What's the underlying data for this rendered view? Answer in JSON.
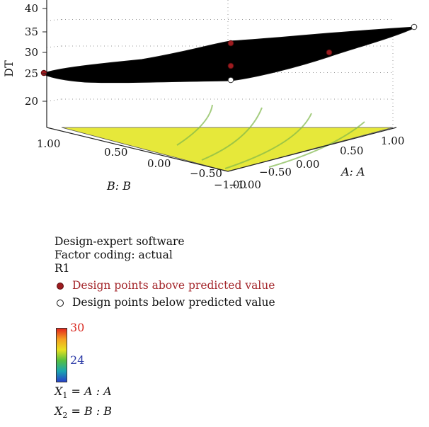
{
  "chart_data": {
    "type": "surface",
    "response_label": "DT",
    "z_ticks": [
      "20",
      "25",
      "30",
      "35",
      "40"
    ],
    "zlim": [
      20,
      40
    ],
    "a_axis_label": "A: A",
    "b_axis_label": "B: B",
    "a_ticks": [
      "−1.00",
      "−0.50",
      "0.00",
      "0.50",
      "1.00"
    ],
    "b_ticks": [
      "1.00",
      "0.50",
      "0.00",
      "−0.50",
      "−1.00"
    ],
    "a_range": [
      -1,
      1
    ],
    "b_range": [
      -1,
      1
    ],
    "surface_corners": [
      {
        "A": -1,
        "B": 1,
        "DT": 25.5
      },
      {
        "A": 1,
        "B": 1,
        "DT": 38
      },
      {
        "A": 1,
        "B": -1,
        "DT": 36
      },
      {
        "A": -1,
        "B": -1,
        "DT": 27
      }
    ],
    "design_points": [
      {
        "A": -1,
        "B": 1,
        "DT": 25.5,
        "status": "above"
      },
      {
        "A": 0,
        "B": 0,
        "DT": 32.5,
        "status": "above"
      },
      {
        "A": 0,
        "B": 0,
        "DT": 29.5,
        "status": "above"
      },
      {
        "A": 0.45,
        "B": -0.4,
        "DT": 31,
        "status": "above"
      },
      {
        "A": 0,
        "B": 0,
        "DT": 26.5,
        "status": "below"
      },
      {
        "A": 1,
        "B": 1,
        "DT": 38,
        "status": "below"
      }
    ],
    "floor_color": "#e6e83a",
    "surface_color": "#000000"
  },
  "legend": {
    "software": "Design-expert software",
    "coding": "Factor coding: actual",
    "response": "R1",
    "above_label": "Design points above predicted value",
    "below_label": "Design points below predicted value",
    "colorbar_max": "30",
    "colorbar_min": "24",
    "x1_lhs": "X",
    "x1_sub": "1",
    "x1_rhs": " = A : A",
    "x2_lhs": "X",
    "x2_sub": "2",
    "x2_rhs": " = B : B"
  }
}
